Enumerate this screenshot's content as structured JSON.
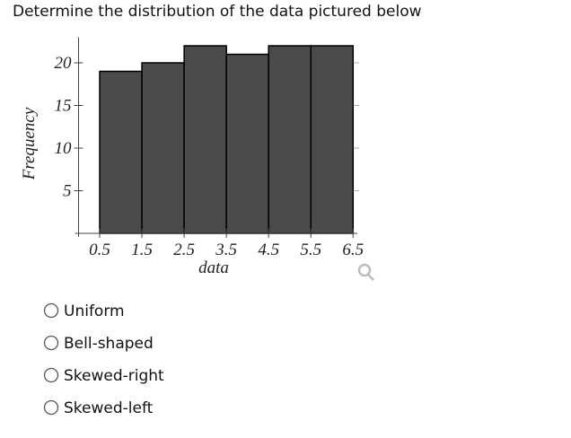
{
  "question": "Determine the distribution of the data pictured below",
  "chart_data": {
    "type": "histogram",
    "xlabel": "data",
    "ylabel": "Frequency",
    "bins": [
      0.5,
      1.5,
      2.5,
      3.5,
      4.5,
      5.5,
      6.5
    ],
    "values": [
      19,
      20,
      22,
      21,
      22,
      22
    ],
    "color": "#4a4a4a",
    "xlim": [
      0,
      6.6
    ],
    "ylim": [
      0,
      23
    ],
    "xticks": [
      0.5,
      1.5,
      2.5,
      3.5,
      4.5,
      5.5,
      6.5
    ],
    "yticks": [
      5,
      10,
      15,
      20
    ]
  },
  "options": [
    "Uniform",
    "Bell-shaped",
    "Skewed-right",
    "Skewed-left"
  ]
}
